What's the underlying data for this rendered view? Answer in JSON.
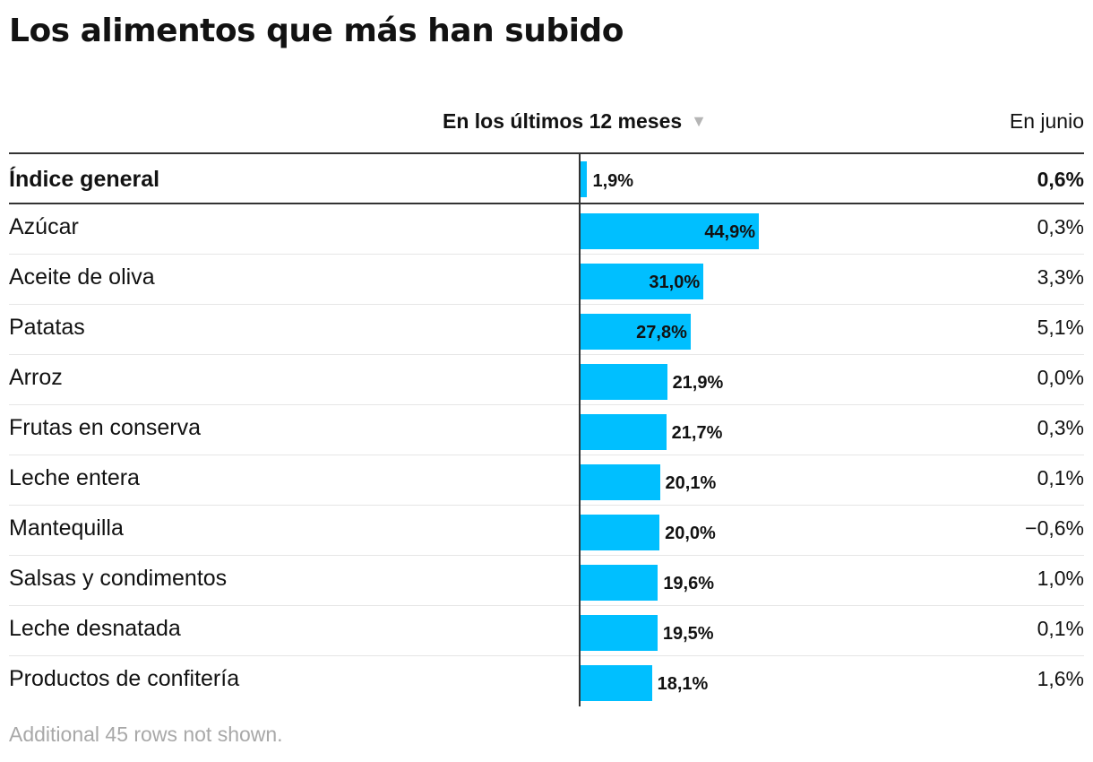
{
  "title": "Los alimentos que más han subido",
  "columns": {
    "sort_header": "En los últimos 12 meses",
    "sort_icon": "▼",
    "june_header": "En junio"
  },
  "footnote": "Additional 45 rows not shown.",
  "colors": {
    "bar": "#00bfff",
    "text": "#121212",
    "rule": "#333333",
    "muted": "#a8a8a8"
  },
  "chart_data": {
    "type": "bar",
    "orientation": "horizontal",
    "title": "Los alimentos que más han subido",
    "xlim": [
      0,
      100
    ],
    "categories": [
      "Índice general",
      "Azúcar",
      "Aceite de oliva",
      "Patatas",
      "Arroz",
      "Frutas en conserva",
      "Leche entera",
      "Mantequilla",
      "Salsas y condimentos",
      "Leche desnatada",
      "Productos de confitería"
    ],
    "series": [
      {
        "name": "En los últimos 12 meses",
        "values": [
          1.9,
          44.9,
          31.0,
          27.8,
          21.9,
          21.7,
          20.1,
          20.0,
          19.6,
          19.5,
          18.1
        ],
        "labels": [
          "1,9%",
          "44,9%",
          "31,0%",
          "27,8%",
          "21,9%",
          "21,7%",
          "20,1%",
          "20,0%",
          "19,6%",
          "19,5%",
          "18,1%"
        ]
      },
      {
        "name": "En junio",
        "values": [
          0.6,
          0.3,
          3.3,
          5.1,
          0.0,
          0.3,
          0.1,
          -0.6,
          1.0,
          0.1,
          1.6
        ],
        "labels": [
          "0,6%",
          "0,3%",
          "3,3%",
          "5,1%",
          "0,0%",
          "0,3%",
          "0,1%",
          "−0,6%",
          "1,0%",
          "0,1%",
          "1,6%"
        ]
      }
    ]
  }
}
